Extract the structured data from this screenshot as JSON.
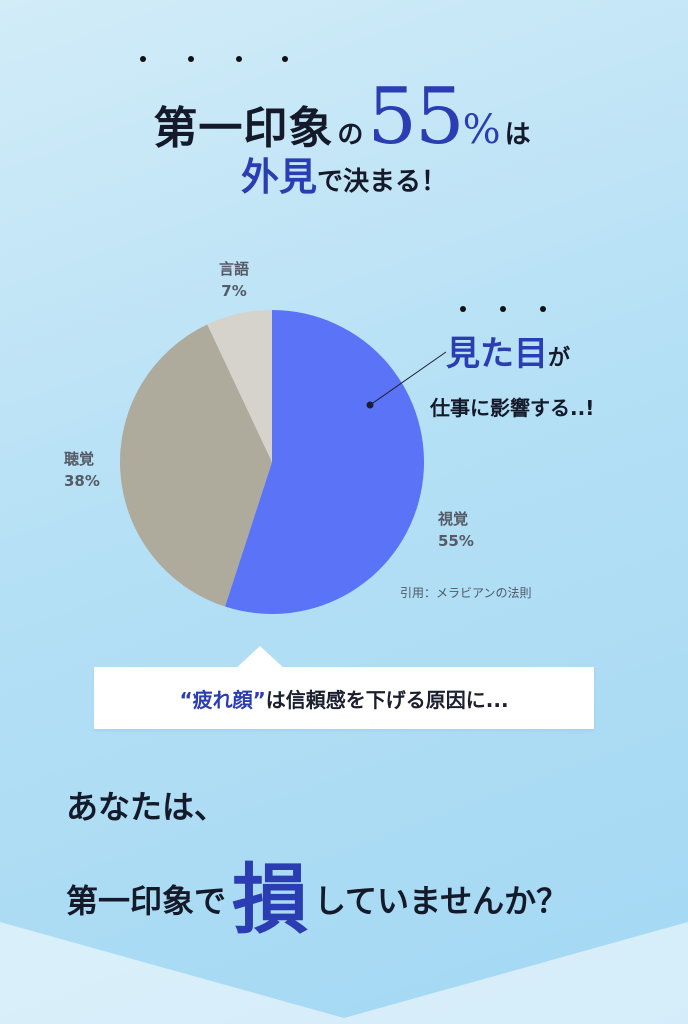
{
  "headline": {
    "first_impression": "第一印象",
    "no": "の",
    "number": "55",
    "percent": "%",
    "wa": "は",
    "appearance": "外見",
    "decided": "で決まる！"
  },
  "pie": {
    "slices": [
      {
        "label": "視覚",
        "pct_text": "55%",
        "value": 55,
        "color": "#5b73f7"
      },
      {
        "label": "聴覚",
        "pct_text": "38%",
        "value": 38,
        "color": "#aeaa9c"
      },
      {
        "label": "言語",
        "pct_text": "7%",
        "value": 7,
        "color": "#d6d3cc"
      }
    ],
    "citation": "引用：メラビアンの法則"
  },
  "callout": {
    "mitame": "見た目",
    "ga": "が",
    "line2": "仕事に影響する..!"
  },
  "quote": {
    "open": "“",
    "strong": "疲れ顔",
    "close": "”",
    "rest": "は信頼感を下げる原因に..."
  },
  "question": {
    "line1": "あなたは、",
    "line2_pre": "第一印象で",
    "line2_big": "損",
    "line2_post": "していませんか？"
  },
  "colors": {
    "accent": "#2b3db3",
    "pie_blue": "#5b73f7",
    "pie_taupe": "#aeaa9c",
    "pie_light": "#d6d3cc"
  }
}
